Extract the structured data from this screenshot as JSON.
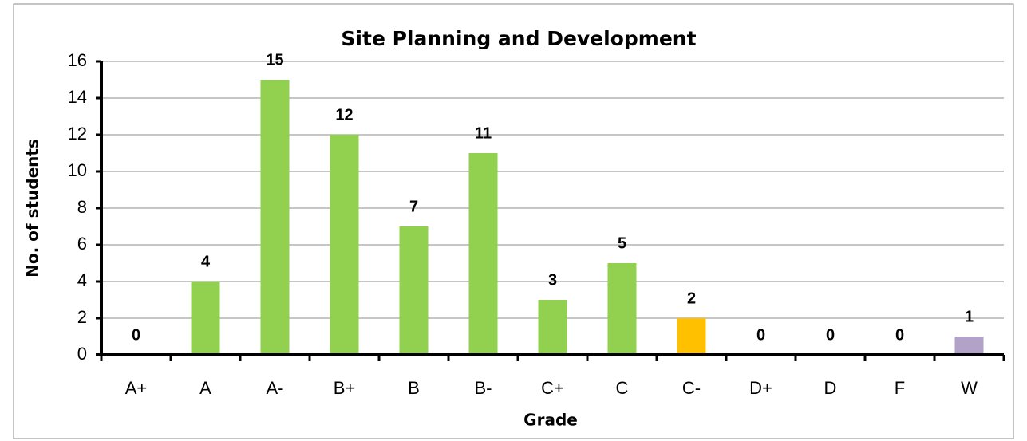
{
  "chart_data": {
    "type": "bar",
    "title": "Site Planning and Development",
    "x_label": "Grade",
    "y_label": "No. of students",
    "categories": [
      "A+",
      "A",
      "A-",
      "B+",
      "B",
      "B-",
      "C+",
      "C",
      "C-",
      "D+",
      "D",
      "F",
      "W"
    ],
    "values": [
      0,
      4,
      15,
      12,
      7,
      11,
      3,
      5,
      2,
      0,
      0,
      0,
      1
    ],
    "colors": [
      "#92d050",
      "#92d050",
      "#92d050",
      "#92d050",
      "#92d050",
      "#92d050",
      "#92d050",
      "#92d050",
      "#ffc000",
      "#92d050",
      "#92d050",
      "#92d050",
      "#b3a2c7"
    ],
    "ylim": [
      0,
      16
    ],
    "yticks": [
      0,
      2,
      4,
      6,
      8,
      10,
      12,
      14,
      16
    ],
    "grid": true
  }
}
